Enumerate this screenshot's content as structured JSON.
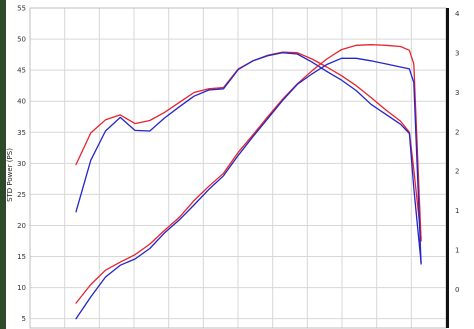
{
  "chart_data": {
    "type": "line",
    "title": "",
    "xlabel": "",
    "ylabel": "STD Power (PS)",
    "ylim": [
      3.5,
      55
    ],
    "y_ticks": [
      5,
      10,
      15,
      20,
      25,
      30,
      35,
      40,
      45,
      50,
      55
    ],
    "right_axis_ticks": [
      "0",
      "1",
      "1",
      "2",
      "2",
      "3",
      "3",
      "4"
    ],
    "xlim": [
      0,
      12
    ],
    "grid": true,
    "legend": "none",
    "colors": {
      "red": "#e8232f",
      "blue": "#2326c8",
      "right_axis": "#111111",
      "grid": "#d7d7d7"
    },
    "series": [
      {
        "color": "#e8232f",
        "group": "power",
        "x": [
          0,
          0.5,
          1.0,
          1.5,
          2.0,
          2.5,
          3.0,
          3.5,
          4.0,
          4.5,
          5.0,
          5.5,
          6.0,
          6.5,
          7.0,
          7.5,
          8.0,
          8.5,
          9.0,
          9.5,
          10.0,
          10.5,
          11.0,
          11.3,
          11.45,
          11.7
        ],
        "y": [
          29.8,
          34.9,
          37.0,
          37.8,
          36.4,
          36.9,
          38.2,
          39.8,
          41.4,
          42.0,
          42.2,
          45.2,
          46.5,
          47.4,
          47.9,
          47.8,
          46.8,
          45.5,
          44.1,
          42.5,
          40.6,
          38.6,
          36.8,
          35.0,
          29.0,
          18.0
        ]
      },
      {
        "color": "#2326c8",
        "group": "power",
        "x": [
          0,
          0.5,
          1.0,
          1.5,
          2.0,
          2.5,
          3.0,
          3.5,
          4.0,
          4.5,
          5.0,
          5.5,
          6.0,
          6.5,
          7.0,
          7.5,
          8.0,
          8.5,
          9.0,
          9.5,
          10.0,
          10.5,
          11.0,
          11.3,
          11.45,
          11.7
        ],
        "y": [
          22.2,
          30.5,
          35.2,
          37.4,
          35.3,
          35.2,
          37.3,
          39.1,
          40.8,
          41.8,
          42.0,
          45.1,
          46.5,
          47.3,
          47.8,
          47.6,
          46.3,
          44.8,
          43.4,
          41.7,
          39.5,
          37.9,
          36.3,
          34.8,
          26.0,
          14.0
        ]
      },
      {
        "color": "#e8232f",
        "group": "torque",
        "x": [
          0,
          0.5,
          1.0,
          1.5,
          2.0,
          2.5,
          3.0,
          3.5,
          4.0,
          4.5,
          5.0,
          5.5,
          6.0,
          6.5,
          7.0,
          7.5,
          8.0,
          8.5,
          9.0,
          9.5,
          10.0,
          10.5,
          11.0,
          11.3,
          11.45,
          11.7
        ],
        "y": [
          7.5,
          10.5,
          12.8,
          14.1,
          15.3,
          17.0,
          19.2,
          21.3,
          24.0,
          26.3,
          28.4,
          31.8,
          34.6,
          37.5,
          40.3,
          42.8,
          44.9,
          46.8,
          48.3,
          49.0,
          49.1,
          49.0,
          48.8,
          48.2,
          46.0,
          17.5
        ]
      },
      {
        "color": "#2326c8",
        "group": "torque",
        "x": [
          0,
          0.5,
          1.0,
          1.5,
          2.0,
          2.5,
          3.0,
          3.5,
          4.0,
          4.5,
          5.0,
          5.5,
          6.0,
          6.5,
          7.0,
          7.5,
          8.0,
          8.5,
          9.0,
          9.5,
          10.0,
          10.5,
          11.0,
          11.3,
          11.45,
          11.7
        ],
        "y": [
          5.0,
          8.5,
          11.7,
          13.6,
          14.6,
          16.3,
          18.8,
          20.9,
          23.3,
          25.8,
          28.0,
          31.3,
          34.3,
          37.2,
          40.1,
          42.7,
          44.4,
          45.9,
          46.9,
          46.9,
          46.5,
          46.0,
          45.5,
          45.2,
          43.0,
          13.8
        ]
      }
    ]
  }
}
